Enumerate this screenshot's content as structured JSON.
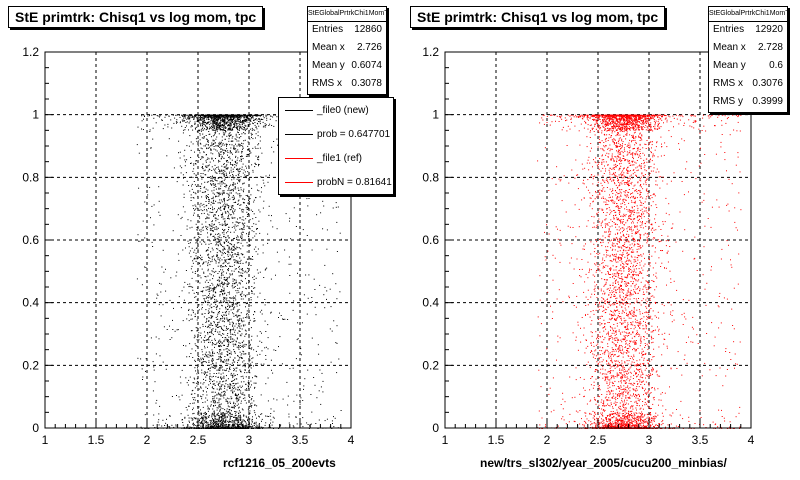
{
  "chart_data": [
    {
      "type": "scatter",
      "title": "StE primtrk: Chisq1 vs log mom, tpc",
      "xlabel": "rcf1216_05_200evts",
      "ylabel": "",
      "xlim": [
        1,
        4
      ],
      "ylim": [
        0,
        1.2
      ],
      "x_ticks": [
        "1",
        "1.5",
        "2",
        "2.5",
        "3",
        "3.5",
        "4"
      ],
      "y_ticks": [
        "0",
        "0.2",
        "0.4",
        "0.6",
        "0.8",
        "1",
        "1.2"
      ],
      "grid": true,
      "marker_color": "#000000",
      "density": {
        "x_range": [
          1.9,
          3.9
        ],
        "x_peak": 2.75,
        "y_peaks": [
          0.0,
          1.0
        ]
      },
      "stats": {
        "name": "StEGlobalPrtrkChi1MomT",
        "entries_label": "Entries",
        "entries": "12860",
        "mean_x_label": "Mean x",
        "mean_x": "2.726",
        "mean_y_label": "Mean y",
        "mean_y": "0.6074",
        "rms_x_label": "RMS x",
        "rms_x": "0.3078"
      },
      "legend": {
        "placement": "top-right",
        "entries": [
          {
            "label": "_file0 (new)",
            "color": "#000000"
          },
          {
            "label": "prob = 0.647701",
            "color": "#000000"
          },
          {
            "label": "_file1 (ref)",
            "color": "#ff0000"
          },
          {
            "label": "probN = 0.81641",
            "color": "#ff0000"
          }
        ]
      }
    },
    {
      "type": "scatter",
      "title": "StE primtrk: Chisq1 vs log mom, tpc",
      "xlabel": "new/trs_sl302/year_2005/cucu200_minbias/",
      "ylabel": "",
      "xlim": [
        1,
        4
      ],
      "ylim": [
        0,
        1.2
      ],
      "x_ticks": [
        "1",
        "1.5",
        "2",
        "2.5",
        "3",
        "3.5",
        "4"
      ],
      "y_ticks": [
        "0",
        "0.2",
        "0.4",
        "0.6",
        "0.8",
        "1",
        "1.2"
      ],
      "grid": true,
      "marker_color": "#ff0000",
      "density": {
        "x_range": [
          1.9,
          3.9
        ],
        "x_peak": 2.75,
        "y_peaks": [
          0.0,
          1.0
        ]
      },
      "stats": {
        "name": "StEGlobalPrtrkChi1MomT",
        "entries_label": "Entries",
        "entries": "12920",
        "mean_x_label": "Mean x",
        "mean_x": "2.728",
        "mean_y_label": "Mean y",
        "mean_y": "0.6",
        "rms_x_label": "RMS x",
        "rms_x": "0.3076",
        "rms_y_label": "RMS y",
        "rms_y": "0.3999"
      }
    }
  ]
}
